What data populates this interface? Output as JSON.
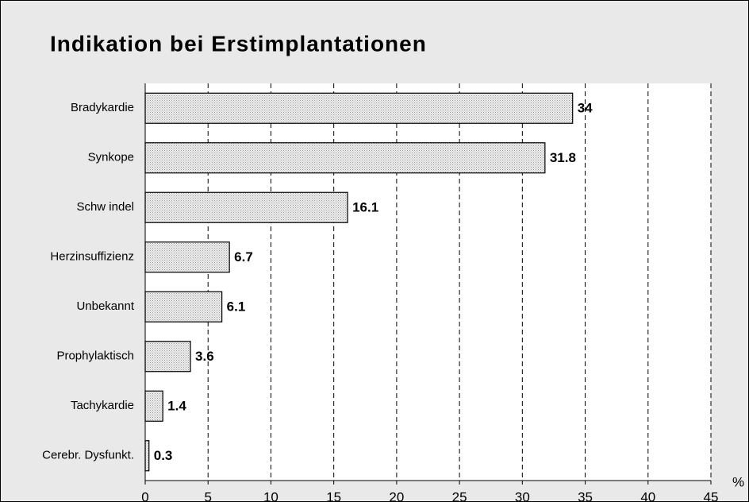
{
  "chart_data": {
    "type": "bar",
    "orientation": "horizontal",
    "title": "Indikation bei Erstimplantationen",
    "x_label": "%",
    "categories": [
      "Bradykardie",
      "Synkope",
      "Schw indel",
      "Herzinsuffizienz",
      "Unbekannt",
      "Prophylaktisch",
      "Tachykardie",
      "Cerebr. Dysfunkt."
    ],
    "values": [
      34,
      31.8,
      16.1,
      6.7,
      6.1,
      3.6,
      1.4,
      0.3
    ],
    "color": "#d4d4d4",
    "xlim": [
      0,
      45
    ],
    "xticks": [
      0,
      5,
      10,
      15,
      20,
      25,
      30,
      35,
      40,
      45
    ],
    "grid": true
  }
}
